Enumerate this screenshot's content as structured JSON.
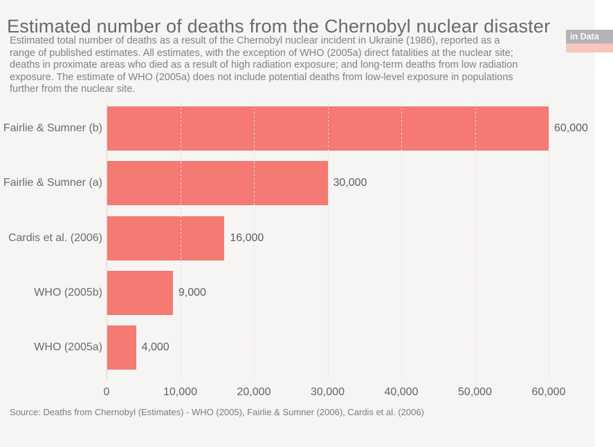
{
  "header": {
    "title": "Estimated number of deaths from the Chernobyl nuclear disaster",
    "subtitle_lines": [
      "Estimated total number of deaths as a result of the Chernobyl nuclear incident in Ukraine (1986), reported as a",
      "range of published estimates. All estimates, with the exception of WHO (2005a) direct fatalities at the nuclear site;",
      "deaths in proximate areas who died as a result of high radiation exposure; and long-term deaths from low radiation",
      "exposure. The estimate of WHO (2005a) does not include potential deaths from low-level exposure in populations",
      "further from the nuclear site."
    ]
  },
  "logo": {
    "text": "in Data"
  },
  "footer": {
    "source": "Source: Deaths from Chernobyl (Estimates) - WHO (2005), Fairlie & Sumner (2006), Cardis et al. (2006)"
  },
  "colors": {
    "background": "#f7f5f4",
    "bar": "#f47a73",
    "gridline": "#e0dcdb",
    "zero_line": "#d8d4d3",
    "logo_box": "#b5b2b9",
    "logo_strip": "#f7c6bf"
  },
  "chart_data": {
    "type": "bar",
    "orientation": "horizontal",
    "title": "Estimated number of deaths from the Chernobyl nuclear disaster",
    "categories": [
      "Fairlie & Sumner (b)",
      "Fairlie & Sumner (a)",
      "Cardis et al. (2006)",
      "WHO (2005b)",
      "WHO (2005a)"
    ],
    "values": [
      60000,
      30000,
      16000,
      9000,
      4000
    ],
    "value_labels": [
      "60,000",
      "30,000",
      "16,000",
      "9,000",
      "4,000"
    ],
    "xlabel": "",
    "ylabel": "",
    "xlim": [
      0,
      60000
    ],
    "x_ticks": [
      {
        "value": 0,
        "label": "0"
      },
      {
        "value": 10000,
        "label": "10,000"
      },
      {
        "value": 20000,
        "label": "20,000"
      },
      {
        "value": 30000,
        "label": "30,000"
      },
      {
        "value": 40000,
        "label": "40,000"
      },
      {
        "value": 50000,
        "label": "50,000"
      },
      {
        "value": 60000,
        "label": "60,000"
      }
    ],
    "grid": "vertical-dashed",
    "legend": "none"
  }
}
